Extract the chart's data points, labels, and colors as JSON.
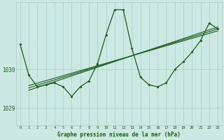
{
  "xlabel": "Graphe pression niveau de la mer (hPa)",
  "bg_color": "#cce8e2",
  "grid_color": "#aacccc",
  "line_color": "#1a5c1a",
  "xlim": [
    -0.5,
    23.5
  ],
  "ylim": [
    1028.55,
    1031.75
  ],
  "x_ticks": [
    0,
    1,
    2,
    3,
    4,
    5,
    6,
    7,
    8,
    9,
    10,
    11,
    12,
    13,
    14,
    15,
    16,
    17,
    18,
    19,
    20,
    21,
    22,
    23
  ],
  "y_ticks": [
    1029,
    1030
  ],
  "main_y": [
    1030.65,
    1029.85,
    1029.55,
    1029.6,
    1029.65,
    1029.55,
    1029.3,
    1029.55,
    1029.7,
    1030.15,
    1030.9,
    1031.55,
    1031.55,
    1030.55,
    1029.8,
    1029.6,
    1029.55,
    1029.65,
    1030.0,
    1030.2,
    1030.45,
    1030.75,
    1031.2,
    1031.05
  ],
  "trend_lines": [
    {
      "x0": 1,
      "y0": 1029.58,
      "x1": 23,
      "y1": 1031.0
    },
    {
      "x0": 1,
      "y0": 1029.52,
      "x1": 23,
      "y1": 1031.05
    },
    {
      "x0": 1,
      "y0": 1029.46,
      "x1": 23,
      "y1": 1031.1
    }
  ]
}
